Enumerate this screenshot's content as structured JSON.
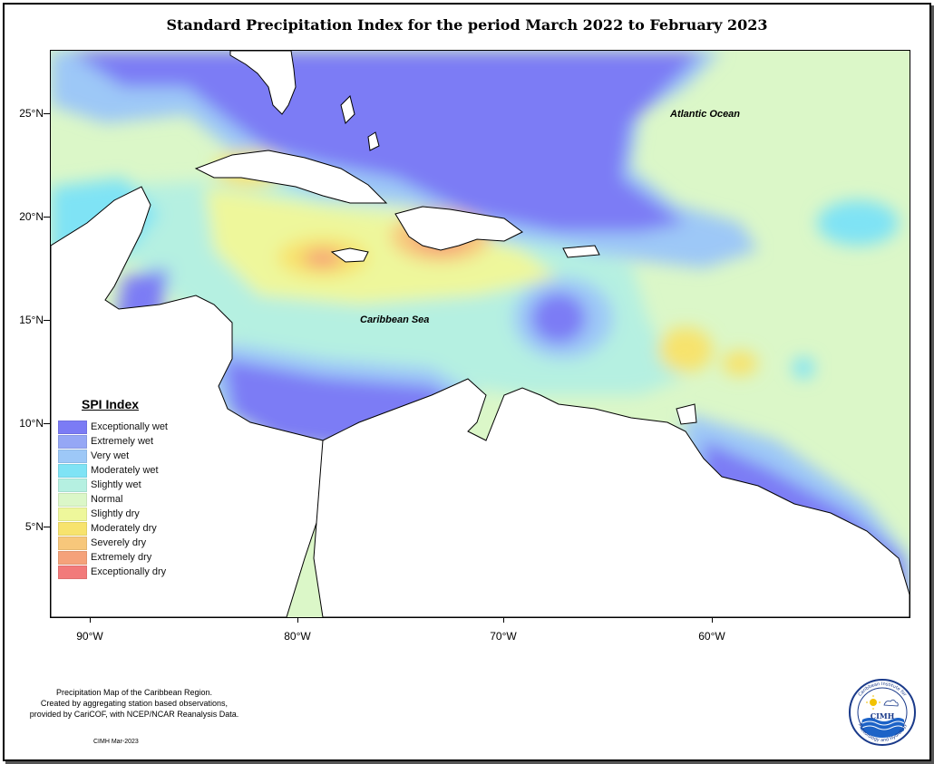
{
  "title": "Standard Precipitation Index for the period March 2022 to February 2023",
  "axes": {
    "lat_ticks": [
      "25°N",
      "20°N",
      "15°N",
      "10°N",
      "5°N"
    ],
    "lon_ticks": [
      "90°W",
      "80°W",
      "70°W",
      "60°W"
    ]
  },
  "labels": {
    "atlantic": "Atlantic Ocean",
    "caribbean": "Caribbean Sea"
  },
  "legend": {
    "title": "SPI Index",
    "items": [
      {
        "label": "Exceptionally wet",
        "color": "#7b7bf5"
      },
      {
        "label": "Extremely wet",
        "color": "#95a7f5"
      },
      {
        "label": "Very wet",
        "color": "#9dc8f7"
      },
      {
        "label": "Moderately wet",
        "color": "#7fe3f5"
      },
      {
        "label": "Slightly wet",
        "color": "#b5f0e1"
      },
      {
        "label": "Normal",
        "color": "#dbf7c8"
      },
      {
        "label": "Slightly dry",
        "color": "#eef79b"
      },
      {
        "label": "Moderately dry",
        "color": "#f7e36d"
      },
      {
        "label": "Severely dry",
        "color": "#f7c77b"
      },
      {
        "label": "Extremely dry",
        "color": "#f5a27a"
      },
      {
        "label": "Exceptionally dry",
        "color": "#f27a7a"
      }
    ]
  },
  "credits": {
    "line1": "Precipitation Map of the Caribbean Region.",
    "line2": "Created by aggregating station based observations,",
    "line3": "provided by CariCOF, with NCEP/NCAR Reanalysis Data.",
    "stamp": "CIMH Mar-2023"
  },
  "logo": {
    "text_top": "Caribbean Institute for",
    "text_bottom": "Meteorology and Hydrology",
    "acronym": "CIMH"
  }
}
